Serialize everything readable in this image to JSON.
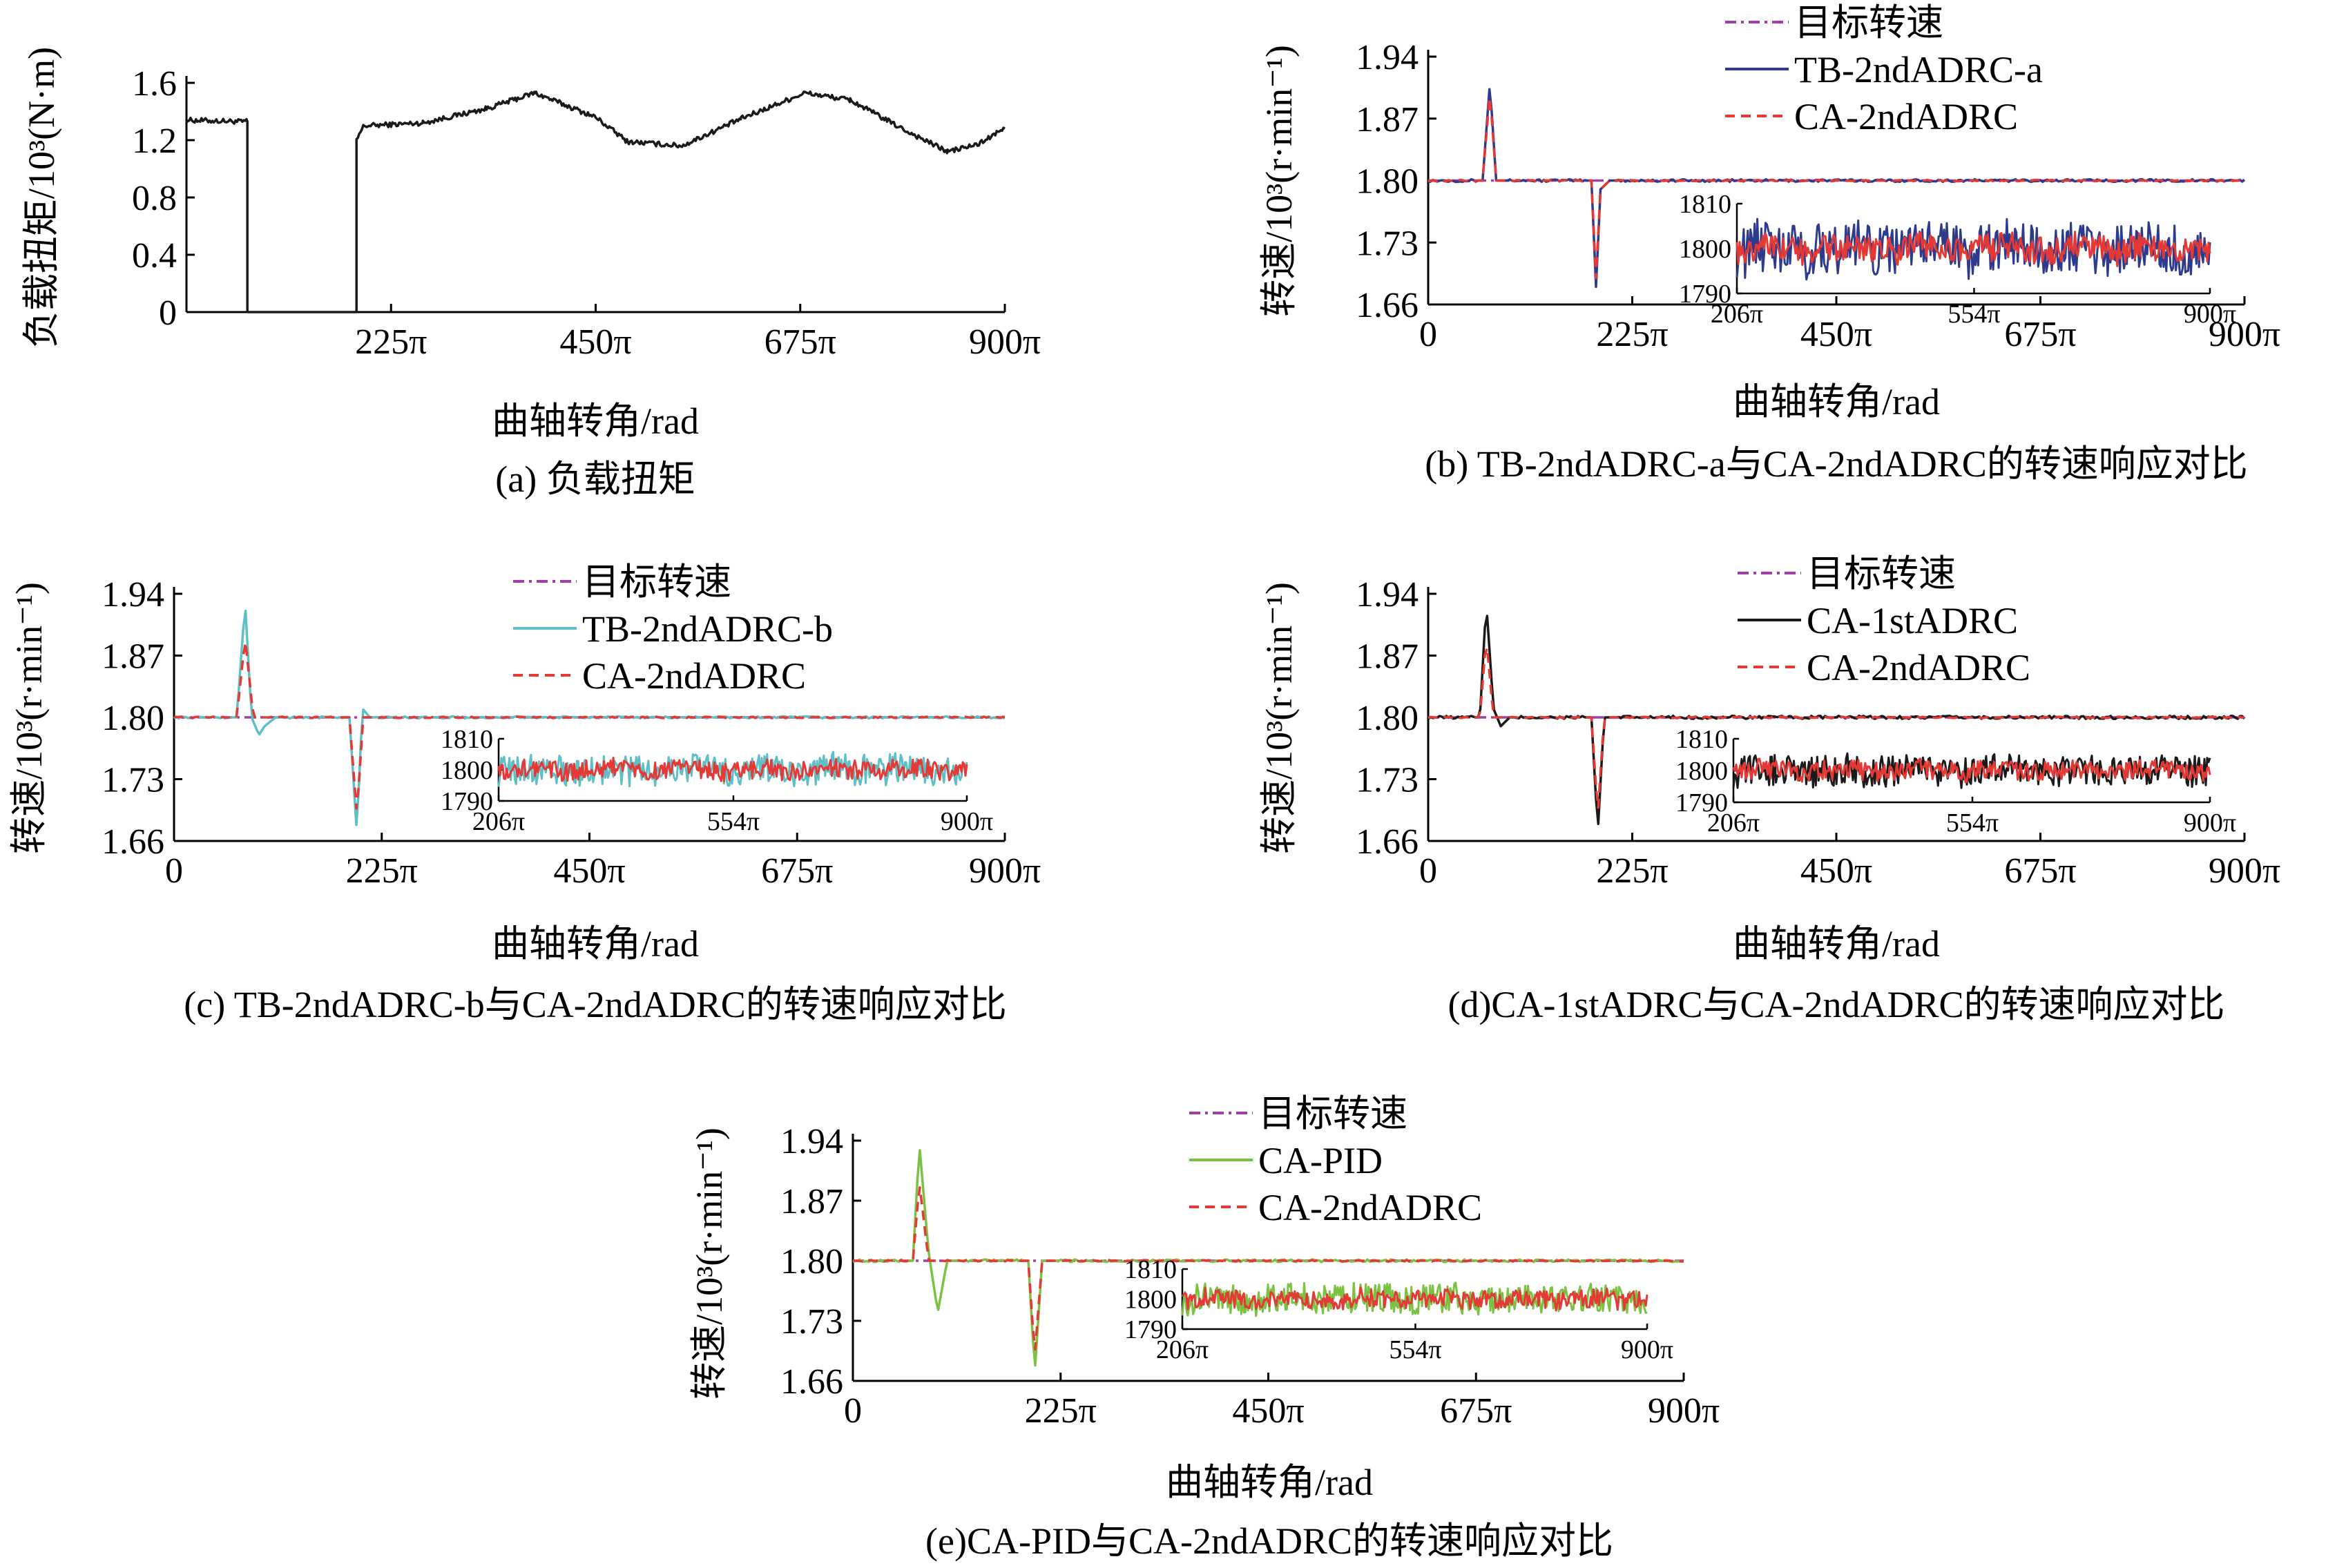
{
  "chart_data": [
    {
      "id": "a",
      "type": "line",
      "caption": "(a) 负载扭矩",
      "xlabel": "曲轴转角/rad",
      "ylabel": "负载扭矩/10³(N·m)",
      "xlim": [
        0,
        900
      ],
      "ylim": [
        0,
        1.6
      ],
      "x_unit": "π",
      "x_ticks": [
        "225π",
        "450π",
        "675π",
        "900π"
      ],
      "x_tick_values": [
        225,
        450,
        675,
        900
      ],
      "y_ticks": [
        "0",
        "0.4",
        "0.8",
        "1.2",
        "1.6"
      ],
      "y_tick_values": [
        0,
        0.4,
        0.8,
        1.2,
        1.6
      ],
      "series": [
        {
          "color": "#1a1a1a",
          "x": [
            0,
            60,
            67,
            67,
            187,
            187,
            195,
            260,
            330,
            383,
            450,
            485,
            545,
            610,
            680,
            730,
            790,
            837,
            870,
            900
          ],
          "y": [
            1.34,
            1.33,
            1.33,
            0,
            0,
            1.2,
            1.3,
            1.32,
            1.42,
            1.53,
            1.36,
            1.19,
            1.16,
            1.35,
            1.53,
            1.48,
            1.27,
            1.12,
            1.17,
            1.28
          ]
        }
      ]
    },
    {
      "id": "b",
      "type": "line",
      "caption": "(b) TB-2ndADRC-a与CA-2ndADRC的转速响应对比",
      "xlabel": "曲轴转角/rad",
      "ylabel": "转速/10³(r·min⁻¹)",
      "xlim": [
        0,
        900
      ],
      "ylim": [
        1.66,
        1.94
      ],
      "x_unit": "π",
      "x_ticks": [
        "0",
        "225π",
        "450π",
        "675π",
        "900π"
      ],
      "x_tick_values": [
        0,
        225,
        450,
        675,
        900
      ],
      "y_ticks": [
        "1.66",
        "1.73",
        "1.80",
        "1.87",
        "1.94"
      ],
      "y_tick_values": [
        1.66,
        1.73,
        1.8,
        1.87,
        1.94
      ],
      "legend": {
        "placement": "top-right",
        "entries": [
          "目标转速",
          "TB-2ndADRC-a",
          "CA-2ndADRC"
        ]
      },
      "inset": {
        "x_ticks": [
          "206π",
          "554π",
          "900π"
        ],
        "x_tick_values": [
          206,
          554,
          900
        ],
        "y_ticks": [
          "1810",
          "1800",
          "1790"
        ],
        "y_tick_values": [
          1810,
          1800,
          1790
        ],
        "xlim": [
          206,
          900
        ],
        "ylim": [
          1790,
          1810
        ]
      },
      "series": [
        {
          "name": "目标转速",
          "color": "#a13ea8",
          "style": "dashdot",
          "x": [
            0,
            900
          ],
          "y": [
            1.8,
            1.8
          ]
        },
        {
          "name": "TB-2ndADRC-a",
          "color": "#2e3a8c",
          "style": "solid",
          "x": [
            0,
            60,
            68,
            75,
            82,
            180,
            185,
            190,
            200,
            900
          ],
          "y": [
            1.8,
            1.8,
            1.91,
            1.8,
            1.8,
            1.8,
            1.68,
            1.79,
            1.8,
            1.8
          ],
          "noise": 0.0015,
          "inset_amp": 6
        },
        {
          "name": "CA-2ndADRC",
          "color": "#e53935",
          "style": "dashed",
          "x": [
            0,
            60,
            68,
            75,
            82,
            180,
            185,
            190,
            200,
            900
          ],
          "y": [
            1.8,
            1.8,
            1.9,
            1.8,
            1.8,
            1.8,
            1.69,
            1.79,
            1.8,
            1.8
          ],
          "noise": 0.0008,
          "inset_amp": 3
        }
      ]
    },
    {
      "id": "c",
      "type": "line",
      "caption": "(c) TB-2ndADRC-b与CA-2ndADRC的转速响应对比",
      "xlabel": "曲轴转角/rad",
      "ylabel": "转速/10³(r·min⁻¹)",
      "xlim": [
        0,
        900
      ],
      "ylim": [
        1.66,
        1.94
      ],
      "x_unit": "π",
      "x_ticks": [
        "0",
        "225π",
        "450π",
        "675π",
        "900π"
      ],
      "x_tick_values": [
        0,
        225,
        450,
        675,
        900
      ],
      "y_ticks": [
        "1.66",
        "1.73",
        "1.80",
        "1.87",
        "1.94"
      ],
      "y_tick_values": [
        1.66,
        1.73,
        1.8,
        1.87,
        1.94
      ],
      "legend": {
        "placement": "top-right",
        "entries": [
          "目标转速",
          "TB-2ndADRC-b",
          "CA-2ndADRC"
        ]
      },
      "inset": {
        "x_ticks": [
          "206π",
          "554π",
          "900π"
        ],
        "x_tick_values": [
          206,
          554,
          900
        ],
        "y_ticks": [
          "1810",
          "1800",
          "1790"
        ],
        "y_tick_values": [
          1810,
          1800,
          1790
        ],
        "xlim": [
          206,
          900
        ],
        "ylim": [
          1790,
          1810
        ]
      },
      "series": [
        {
          "name": "目标转速",
          "color": "#a13ea8",
          "style": "dashdot",
          "x": [
            0,
            900
          ],
          "y": [
            1.8,
            1.8
          ]
        },
        {
          "name": "TB-2ndADRC-b",
          "color": "#5fbfc6",
          "style": "solid",
          "x": [
            0,
            68,
            77,
            84,
            92,
            98,
            110,
            190,
            198,
            204,
            212,
            900
          ],
          "y": [
            1.8,
            1.8,
            1.93,
            1.8,
            1.78,
            1.79,
            1.8,
            1.8,
            1.67,
            1.81,
            1.8,
            1.8
          ],
          "noise": 0.0012,
          "inset_amp": 5
        },
        {
          "name": "CA-2ndADRC",
          "color": "#e53935",
          "style": "dashed",
          "x": [
            0,
            68,
            77,
            86,
            92,
            190,
            198,
            205,
            212,
            900
          ],
          "y": [
            1.8,
            1.8,
            1.89,
            1.8,
            1.8,
            1.8,
            1.69,
            1.8,
            1.8,
            1.8
          ],
          "noise": 0.0008,
          "inset_amp": 3
        }
      ]
    },
    {
      "id": "d",
      "type": "line",
      "caption": "(d)CA-1stADRC与CA-2ndADRC的转速响应对比",
      "xlabel": "曲轴转角/rad",
      "ylabel": "转速/10³(r·min⁻¹)",
      "xlim": [
        0,
        900
      ],
      "ylim": [
        1.66,
        1.94
      ],
      "x_unit": "π",
      "x_ticks": [
        "0",
        "225π",
        "450π",
        "675π",
        "900π"
      ],
      "x_tick_values": [
        0,
        225,
        450,
        675,
        900
      ],
      "y_ticks": [
        "1.66",
        "1.73",
        "1.80",
        "1.87",
        "1.94"
      ],
      "y_tick_values": [
        1.66,
        1.73,
        1.8,
        1.87,
        1.94
      ],
      "legend": {
        "placement": "top-right",
        "entries": [
          "目标转速",
          "CA-1stADRC",
          "CA-2ndADRC"
        ]
      },
      "inset": {
        "x_ticks": [
          "206π",
          "554π",
          "900π"
        ],
        "x_tick_values": [
          206,
          554,
          900
        ],
        "y_ticks": [
          "1810",
          "1800",
          "1790"
        ],
        "y_tick_values": [
          1810,
          1800,
          1790
        ],
        "xlim": [
          206,
          900
        ],
        "ylim": [
          1790,
          1810
        ]
      },
      "series": [
        {
          "name": "目标转速",
          "color": "#a13ea8",
          "style": "dashdot",
          "x": [
            0,
            900
          ],
          "y": [
            1.8,
            1.8
          ]
        },
        {
          "name": "CA-1stADRC",
          "color": "#1a1a1a",
          "style": "solid",
          "x": [
            0,
            57,
            64,
            72,
            80,
            90,
            180,
            187,
            194,
            202,
            900
          ],
          "y": [
            1.8,
            1.8,
            1.93,
            1.81,
            1.79,
            1.8,
            1.8,
            1.67,
            1.8,
            1.8,
            1.8
          ],
          "noise": 0.0018,
          "inset_amp": 5
        },
        {
          "name": "CA-2ndADRC",
          "color": "#e53935",
          "style": "dashed",
          "x": [
            0,
            57,
            64,
            72,
            80,
            180,
            187,
            194,
            202,
            900
          ],
          "y": [
            1.8,
            1.8,
            1.89,
            1.8,
            1.8,
            1.8,
            1.69,
            1.8,
            1.8,
            1.8
          ],
          "noise": 0.0008,
          "inset_amp": 3
        }
      ]
    },
    {
      "id": "e",
      "type": "line",
      "caption": "(e)CA-PID与CA-2ndADRC的转速响应对比",
      "xlabel": "曲轴转角/rad",
      "ylabel": "转速/10³(r·min⁻¹)",
      "xlim": [
        0,
        900
      ],
      "ylim": [
        1.66,
        1.94
      ],
      "x_unit": "π",
      "x_ticks": [
        "0",
        "225π",
        "450π",
        "675π",
        "900π"
      ],
      "x_tick_values": [
        0,
        225,
        450,
        675,
        900
      ],
      "y_ticks": [
        "1.66",
        "1.73",
        "1.80",
        "1.87",
        "1.94"
      ],
      "y_tick_values": [
        1.66,
        1.73,
        1.8,
        1.87,
        1.94
      ],
      "legend": {
        "placement": "top-right",
        "entries": [
          "目标转速",
          "CA-PID",
          "CA-2ndADRC"
        ]
      },
      "inset": {
        "x_ticks": [
          "206π",
          "554π",
          "900π"
        ],
        "x_tick_values": [
          206,
          554,
          900
        ],
        "y_ticks": [
          "1810",
          "1800",
          "1790"
        ],
        "y_tick_values": [
          1810,
          1800,
          1790
        ],
        "xlim": [
          206,
          900
        ],
        "ylim": [
          1790,
          1810
        ]
      },
      "series": [
        {
          "name": "目标转速",
          "color": "#a13ea8",
          "style": "dashdot",
          "x": [
            0,
            900
          ],
          "y": [
            1.8,
            1.8
          ]
        },
        {
          "name": "CA-PID",
          "color": "#7cc242",
          "style": "solid",
          "x": [
            0,
            65,
            72,
            82,
            92,
            102,
            112,
            190,
            197,
            205,
            215,
            900
          ],
          "y": [
            1.8,
            1.8,
            1.935,
            1.81,
            1.74,
            1.8,
            1.8,
            1.8,
            1.67,
            1.8,
            1.8,
            1.8
          ],
          "noise": 0.0015,
          "inset_amp": 5
        },
        {
          "name": "CA-2ndADRC",
          "color": "#e53935",
          "style": "dashed",
          "x": [
            0,
            65,
            72,
            82,
            92,
            190,
            197,
            205,
            215,
            900
          ],
          "y": [
            1.8,
            1.8,
            1.89,
            1.8,
            1.8,
            1.8,
            1.69,
            1.8,
            1.8,
            1.8
          ],
          "noise": 0.0008,
          "inset_amp": 3
        }
      ]
    }
  ]
}
